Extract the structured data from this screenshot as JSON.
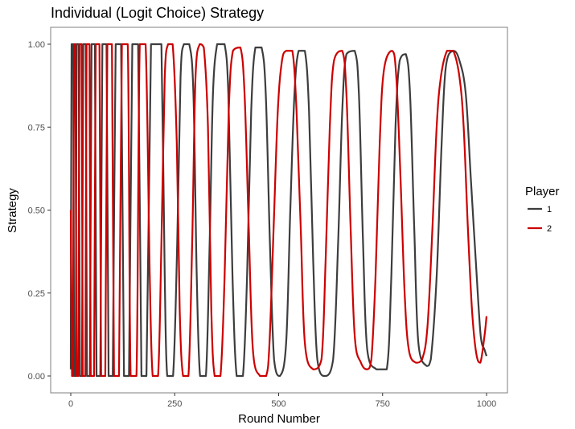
{
  "chart_data": {
    "type": "line",
    "title": "Individual (Logit Choice) Strategy",
    "xlabel": "Round Number",
    "ylabel": "Strategy",
    "xlim": [
      0,
      1000
    ],
    "ylim": [
      0,
      1
    ],
    "x_ticks": [
      0,
      250,
      500,
      750,
      1000
    ],
    "x_tick_labels": [
      "0",
      "250",
      "500",
      "750",
      "1000"
    ],
    "y_ticks": [
      0,
      0.25,
      0.5,
      0.75,
      1.0
    ],
    "y_tick_labels": [
      "0.00",
      "0.25",
      "0.50",
      "0.75",
      "1.00"
    ],
    "grid": false,
    "legend": {
      "title": "Player",
      "position": "right"
    },
    "series": [
      {
        "name": "1",
        "color": "#3d3d3d",
        "points": [
          [
            0,
            0.02
          ],
          [
            2,
            1.0
          ],
          [
            6,
            1.0
          ],
          [
            8,
            0.0
          ],
          [
            12,
            0.0
          ],
          [
            14,
            1.0
          ],
          [
            19,
            1.0
          ],
          [
            22,
            0.0
          ],
          [
            27,
            0.0
          ],
          [
            30,
            1.0
          ],
          [
            36,
            1.0
          ],
          [
            39,
            0.0
          ],
          [
            46,
            0.0
          ],
          [
            50,
            1.0
          ],
          [
            58,
            1.0
          ],
          [
            62,
            0.0
          ],
          [
            71,
            0.0
          ],
          [
            76,
            1.0
          ],
          [
            86,
            1.0
          ],
          [
            91,
            0.0
          ],
          [
            101,
            0.0
          ],
          [
            108,
            1.0
          ],
          [
            121,
            1.0
          ],
          [
            128,
            0.0
          ],
          [
            140,
            0.0
          ],
          [
            148,
            1.0
          ],
          [
            162,
            1.0
          ],
          [
            170,
            0.0
          ],
          [
            182,
            0.0
          ],
          [
            193,
            1.0
          ],
          [
            203,
            1.0
          ],
          [
            210,
            1.0
          ],
          [
            218,
            1.0
          ],
          [
            226,
            0.3
          ],
          [
            232,
            0.0
          ],
          [
            246,
            0.0
          ],
          [
            256,
            0.4
          ],
          [
            264,
            0.9
          ],
          [
            272,
            1.0
          ],
          [
            285,
            1.0
          ],
          [
            295,
            0.85
          ],
          [
            303,
            0.3
          ],
          [
            311,
            0.0
          ],
          [
            325,
            0.0
          ],
          [
            334,
            0.4
          ],
          [
            342,
            0.85
          ],
          [
            352,
            1.0
          ],
          [
            360,
            1.0
          ],
          [
            370,
            1.0
          ],
          [
            379,
            0.85
          ],
          [
            389,
            0.3
          ],
          [
            399,
            0.0
          ],
          [
            414,
            0.0
          ],
          [
            424,
            0.3
          ],
          [
            434,
            0.8
          ],
          [
            444,
            0.99
          ],
          [
            459,
            0.99
          ],
          [
            469,
            0.85
          ],
          [
            479,
            0.4
          ],
          [
            489,
            0.05
          ],
          [
            503,
            0.0
          ],
          [
            518,
            0.1
          ],
          [
            528,
            0.5
          ],
          [
            538,
            0.85
          ],
          [
            548,
            0.98
          ],
          [
            563,
            0.98
          ],
          [
            573,
            0.8
          ],
          [
            583,
            0.35
          ],
          [
            593,
            0.05
          ],
          [
            611,
            0.0
          ],
          [
            631,
            0.05
          ],
          [
            643,
            0.4
          ],
          [
            653,
            0.8
          ],
          [
            663,
            0.97
          ],
          [
            683,
            0.98
          ],
          [
            693,
            0.85
          ],
          [
            703,
            0.4
          ],
          [
            713,
            0.08
          ],
          [
            735,
            0.02
          ],
          [
            760,
            0.02
          ],
          [
            771,
            0.3
          ],
          [
            781,
            0.75
          ],
          [
            791,
            0.95
          ],
          [
            806,
            0.97
          ],
          [
            816,
            0.85
          ],
          [
            826,
            0.45
          ],
          [
            836,
            0.1
          ],
          [
            856,
            0.03
          ],
          [
            866,
            0.05
          ],
          [
            880,
            0.3
          ],
          [
            892,
            0.7
          ],
          [
            902,
            0.93
          ],
          [
            920,
            0.98
          ],
          [
            935,
            0.95
          ],
          [
            950,
            0.85
          ],
          [
            962,
            0.6
          ],
          [
            974,
            0.35
          ],
          [
            986,
            0.12
          ],
          [
            995,
            0.08
          ],
          [
            1000,
            0.06
          ]
        ]
      },
      {
        "name": "2",
        "color": "#cc0000",
        "points": [
          [
            0,
            0.5
          ],
          [
            3,
            0.0
          ],
          [
            5,
            0.0
          ],
          [
            8,
            1.0
          ],
          [
            11,
            1.0
          ],
          [
            14,
            0.0
          ],
          [
            18,
            0.0
          ],
          [
            21,
            1.0
          ],
          [
            26,
            1.0
          ],
          [
            29,
            0.0
          ],
          [
            35,
            0.0
          ],
          [
            38,
            1.0
          ],
          [
            45,
            1.0
          ],
          [
            48,
            0.0
          ],
          [
            56,
            0.0
          ],
          [
            60,
            1.0
          ],
          [
            69,
            1.0
          ],
          [
            73,
            0.0
          ],
          [
            83,
            0.0
          ],
          [
            88,
            1.0
          ],
          [
            99,
            1.0
          ],
          [
            104,
            0.0
          ],
          [
            116,
            0.0
          ],
          [
            123,
            1.0
          ],
          [
            137,
            1.0
          ],
          [
            144,
            0.0
          ],
          [
            158,
            0.0
          ],
          [
            166,
            1.0
          ],
          [
            180,
            1.0
          ],
          [
            190,
            0.3
          ],
          [
            197,
            0.0
          ],
          [
            210,
            0.0
          ],
          [
            218,
            0.4
          ],
          [
            226,
            0.9
          ],
          [
            234,
            1.0
          ],
          [
            245,
            1.0
          ],
          [
            255,
            0.7
          ],
          [
            262,
            0.2
          ],
          [
            270,
            0.0
          ],
          [
            283,
            0.0
          ],
          [
            292,
            0.4
          ],
          [
            300,
            0.9
          ],
          [
            310,
            1.0
          ],
          [
            320,
            0.99
          ],
          [
            330,
            0.75
          ],
          [
            338,
            0.2
          ],
          [
            346,
            0.0
          ],
          [
            360,
            0.0
          ],
          [
            370,
            0.3
          ],
          [
            380,
            0.8
          ],
          [
            390,
            0.98
          ],
          [
            408,
            0.99
          ],
          [
            418,
            0.85
          ],
          [
            428,
            0.45
          ],
          [
            438,
            0.08
          ],
          [
            455,
            0.0
          ],
          [
            470,
            0.0
          ],
          [
            478,
            0.1
          ],
          [
            488,
            0.45
          ],
          [
            498,
            0.8
          ],
          [
            508,
            0.95
          ],
          [
            518,
            0.98
          ],
          [
            533,
            0.98
          ],
          [
            543,
            0.8
          ],
          [
            553,
            0.45
          ],
          [
            563,
            0.1
          ],
          [
            583,
            0.02
          ],
          [
            603,
            0.05
          ],
          [
            613,
            0.35
          ],
          [
            623,
            0.75
          ],
          [
            633,
            0.95
          ],
          [
            653,
            0.98
          ],
          [
            663,
            0.85
          ],
          [
            673,
            0.45
          ],
          [
            683,
            0.12
          ],
          [
            698,
            0.04
          ],
          [
            713,
            0.02
          ],
          [
            723,
            0.05
          ],
          [
            733,
            0.3
          ],
          [
            743,
            0.7
          ],
          [
            753,
            0.92
          ],
          [
            773,
            0.98
          ],
          [
            783,
            0.9
          ],
          [
            793,
            0.6
          ],
          [
            803,
            0.25
          ],
          [
            813,
            0.08
          ],
          [
            830,
            0.04
          ],
          [
            845,
            0.05
          ],
          [
            858,
            0.15
          ],
          [
            870,
            0.45
          ],
          [
            880,
            0.75
          ],
          [
            890,
            0.9
          ],
          [
            905,
            0.98
          ],
          [
            920,
            0.98
          ],
          [
            935,
            0.9
          ],
          [
            945,
            0.75
          ],
          [
            955,
            0.45
          ],
          [
            965,
            0.2
          ],
          [
            975,
            0.07
          ],
          [
            985,
            0.04
          ],
          [
            995,
            0.12
          ],
          [
            1000,
            0.18
          ]
        ]
      }
    ]
  }
}
